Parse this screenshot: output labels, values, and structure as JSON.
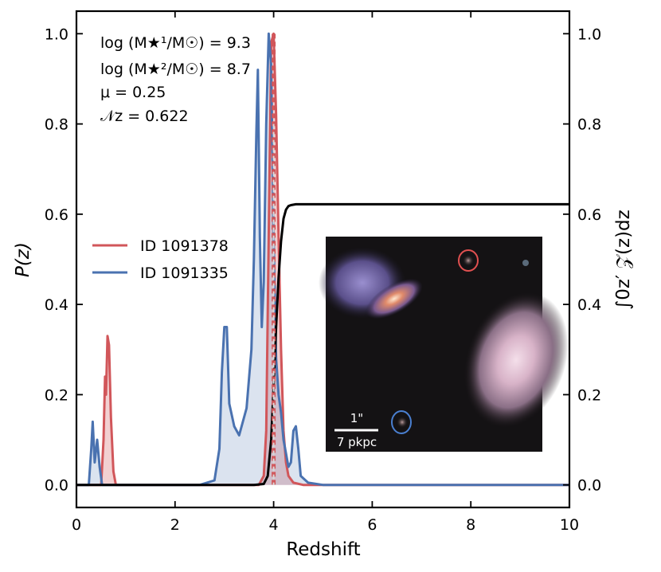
{
  "chart_data": {
    "type": "line",
    "xlabel": "Redshift",
    "ylabel": "P(z)",
    "y2label": "∫0z′ 𝒵(z)dz",
    "xlim": [
      0,
      10
    ],
    "ylim": [
      -0.05,
      1.05
    ],
    "y2lim": [
      -0.05,
      1.05
    ],
    "xticks": [
      "0",
      "2",
      "4",
      "6",
      "8",
      "10"
    ],
    "yticks": [
      "0.0",
      "0.2",
      "0.4",
      "0.6",
      "0.8",
      "1.0"
    ],
    "y2ticks": [
      "0.0",
      "0.2",
      "0.4",
      "0.6",
      "0.8",
      "1.0"
    ],
    "grid": false,
    "legend_position": "center-left",
    "annotations": {
      "line1": "log (M★¹/M☉) = 9.3",
      "line2": "log (M★²/M☉) = 8.7",
      "line3": "μ   = 0.25",
      "line4": "𝒩z = 0.622"
    },
    "colors": {
      "red": "#d1565a",
      "blue": "#4a72b0",
      "black": "#000000"
    },
    "series": [
      {
        "name": "ID 1091378",
        "color": "#d1565a",
        "x": [
          0.0,
          0.5,
          0.55,
          0.58,
          0.6,
          0.63,
          0.66,
          0.7,
          0.75,
          0.8,
          1.0,
          3.5,
          3.7,
          3.8,
          3.85,
          3.9,
          3.95,
          4.0,
          4.05,
          4.1,
          4.15,
          4.2,
          4.25,
          4.3,
          4.4,
          4.6,
          10.0
        ],
        "values": [
          0.0,
          0.0,
          0.1,
          0.24,
          0.2,
          0.33,
          0.31,
          0.15,
          0.03,
          0.0,
          0.0,
          0.0,
          0.0,
          0.02,
          0.12,
          0.55,
          0.98,
          1.0,
          0.82,
          0.55,
          0.3,
          0.12,
          0.05,
          0.02,
          0.005,
          0.0,
          0.0
        ]
      },
      {
        "name": "ID 1091335",
        "color": "#4a72b0",
        "x": [
          0.0,
          0.25,
          0.3,
          0.33,
          0.37,
          0.42,
          0.47,
          0.52,
          0.6,
          0.8,
          2.5,
          2.8,
          2.9,
          2.95,
          3.0,
          3.05,
          3.1,
          3.2,
          3.3,
          3.45,
          3.55,
          3.6,
          3.65,
          3.68,
          3.72,
          3.76,
          3.8,
          3.85,
          3.9,
          3.95,
          4.0,
          4.05,
          4.1,
          4.15,
          4.2,
          4.3,
          4.35,
          4.4,
          4.45,
          4.5,
          4.55,
          4.7,
          5.0,
          10.0
        ],
        "values": [
          0.0,
          0.0,
          0.08,
          0.14,
          0.05,
          0.1,
          0.04,
          0.0,
          0.0,
          0.0,
          0.0,
          0.01,
          0.08,
          0.25,
          0.35,
          0.35,
          0.18,
          0.13,
          0.11,
          0.17,
          0.3,
          0.5,
          0.78,
          0.92,
          0.55,
          0.35,
          0.45,
          0.8,
          1.0,
          0.93,
          0.55,
          0.28,
          0.2,
          0.16,
          0.1,
          0.04,
          0.05,
          0.12,
          0.13,
          0.08,
          0.02,
          0.005,
          0.0,
          0.0
        ]
      },
      {
        "name": "",
        "axis": "right",
        "color": "#000000",
        "x": [
          0.0,
          3.6,
          3.8,
          3.88,
          3.95,
          4.0,
          4.05,
          4.1,
          4.15,
          4.2,
          4.25,
          4.3,
          4.35,
          4.45,
          10.0
        ],
        "values": [
          0.0,
          0.0,
          0.002,
          0.02,
          0.1,
          0.22,
          0.35,
          0.46,
          0.54,
          0.59,
          0.61,
          0.618,
          0.62,
          0.622,
          0.622
        ]
      }
    ],
    "vertical_lines": [
      {
        "x": 3.98,
        "style": "dashed",
        "color": "#d1565a"
      },
      {
        "x": 4.02,
        "style": "dashed",
        "color": "#d1565a"
      }
    ]
  },
  "inset": {
    "scale_arcsec": "1\"",
    "scale_physical": "7 pkpc",
    "marker_colors": {
      "red": "#e05050",
      "blue": "#4a7fd0"
    }
  }
}
